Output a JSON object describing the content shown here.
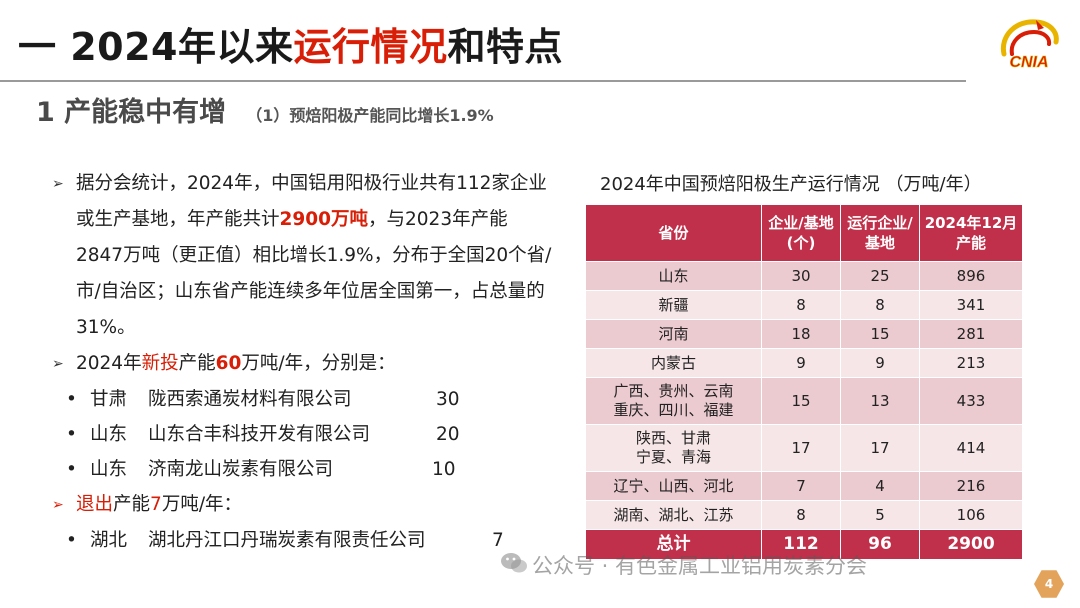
{
  "header": {
    "title_prefix": "一 2024年以来",
    "title_highlight": "运行情况",
    "title_suffix": "和特点",
    "logo_text": "CNIA"
  },
  "section": {
    "heading": "1 产能稳中有增",
    "subheading": "（1）预焙阳极产能同比增长1.9%"
  },
  "body": {
    "para1_a": "据分会统计，2024年，中国铝用阳极行业共有112家企业或生产基地，年产能共计",
    "para1_hl": "2900万吨",
    "para1_b": "，与2023年产能2847万吨（更正值）相比增长1.9%，分布于全国20个省/市/自治区；山东省产能连续多年位居全国第一，占总量的31%。",
    "para2_a": "2024年",
    "para2_red": "新投",
    "para2_b": "产能",
    "para2_hl": "60",
    "para2_c": "万吨/年，分别是：",
    "new_capacity": [
      {
        "province": "甘肃",
        "company": "陇西索通炭材料有限公司",
        "amount": "30"
      },
      {
        "province": "山东",
        "company": "山东合丰科技开发有限公司",
        "amount": "20"
      },
      {
        "province": "山东",
        "company": "济南龙山炭素有限公司",
        "amount": "10"
      }
    ],
    "para3_red": "退出",
    "para3_a": "产能",
    "para3_red2": "7",
    "para3_b": "万吨/年：",
    "exit_capacity": [
      {
        "province": "湖北",
        "company": "湖北丹江口丹瑞炭素有限责任公司",
        "amount": "7"
      }
    ]
  },
  "table": {
    "title": "2024年中国预焙阳极生产运行情况 （万吨/年）",
    "headers": {
      "province": "省份",
      "enterprises": "企业/基地（个）",
      "operating": "运行企业/基地",
      "capacity": "2024年12月产能"
    },
    "rows": [
      {
        "province": "山东",
        "enterprises": "30",
        "operating": "25",
        "capacity": "896"
      },
      {
        "province": "新疆",
        "enterprises": "8",
        "operating": "8",
        "capacity": "341"
      },
      {
        "province": "河南",
        "enterprises": "18",
        "operating": "15",
        "capacity": "281"
      },
      {
        "province": "内蒙古",
        "enterprises": "9",
        "operating": "9",
        "capacity": "213"
      },
      {
        "province": "广西、贵州、云南 重庆、四川、福建",
        "enterprises": "15",
        "operating": "13",
        "capacity": "433"
      },
      {
        "province": "陕西、甘肃 宁夏、青海",
        "enterprises": "17",
        "operating": "17",
        "capacity": "414"
      },
      {
        "province": "辽宁、山西、河北",
        "enterprises": "7",
        "operating": "4",
        "capacity": "216"
      },
      {
        "province": "湖南、湖北、江苏",
        "enterprises": "8",
        "operating": "5",
        "capacity": "106"
      }
    ],
    "total": {
      "label": "总计",
      "enterprises": "112",
      "operating": "96",
      "capacity": "2900"
    }
  },
  "footer": {
    "watermark": "公众号 · 有色金属工业铝用炭素分会",
    "page_number": "4"
  },
  "colors": {
    "accent_red": "#d81e06",
    "table_header": "#c0304a",
    "row_dark": "#ebcbd0",
    "row_light": "#f6e6e8",
    "page_badge": "#e3a35b"
  }
}
